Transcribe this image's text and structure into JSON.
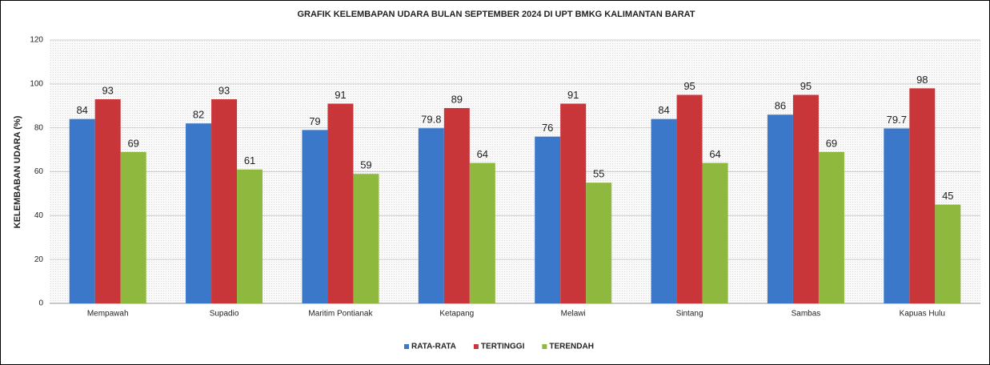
{
  "chart_data": {
    "type": "bar",
    "title": "GRAFIK KELEMBAPAN UDARA  BULAN  SEPTEMBER 2024 DI UPT BMKG KALIMANTAN BARAT",
    "y_label": "KELEMBABAN UDARA (%)",
    "categories": [
      "Mempawah",
      "Supadio",
      "Maritim Pontianak",
      "Ketapang",
      "Melawi",
      "Sintang",
      "Sambas",
      "Kapuas Hulu"
    ],
    "series": [
      {
        "name": "RATA-RATA",
        "color": "#3b78c9",
        "values": [
          84,
          82,
          79,
          79.8,
          76,
          84,
          86,
          79.7
        ]
      },
      {
        "name": "TERTINGGI",
        "color": "#c9363a",
        "values": [
          93,
          93,
          91,
          89,
          91,
          95,
          95,
          98
        ]
      },
      {
        "name": "TERENDAH",
        "color": "#8fb83e",
        "values": [
          69,
          61,
          59,
          64,
          55,
          64,
          69,
          45
        ]
      }
    ],
    "ylim": [
      0,
      120
    ],
    "yticks": [
      0,
      20,
      40,
      60,
      80,
      100,
      120
    ],
    "grid": true,
    "legend": "bottom"
  }
}
